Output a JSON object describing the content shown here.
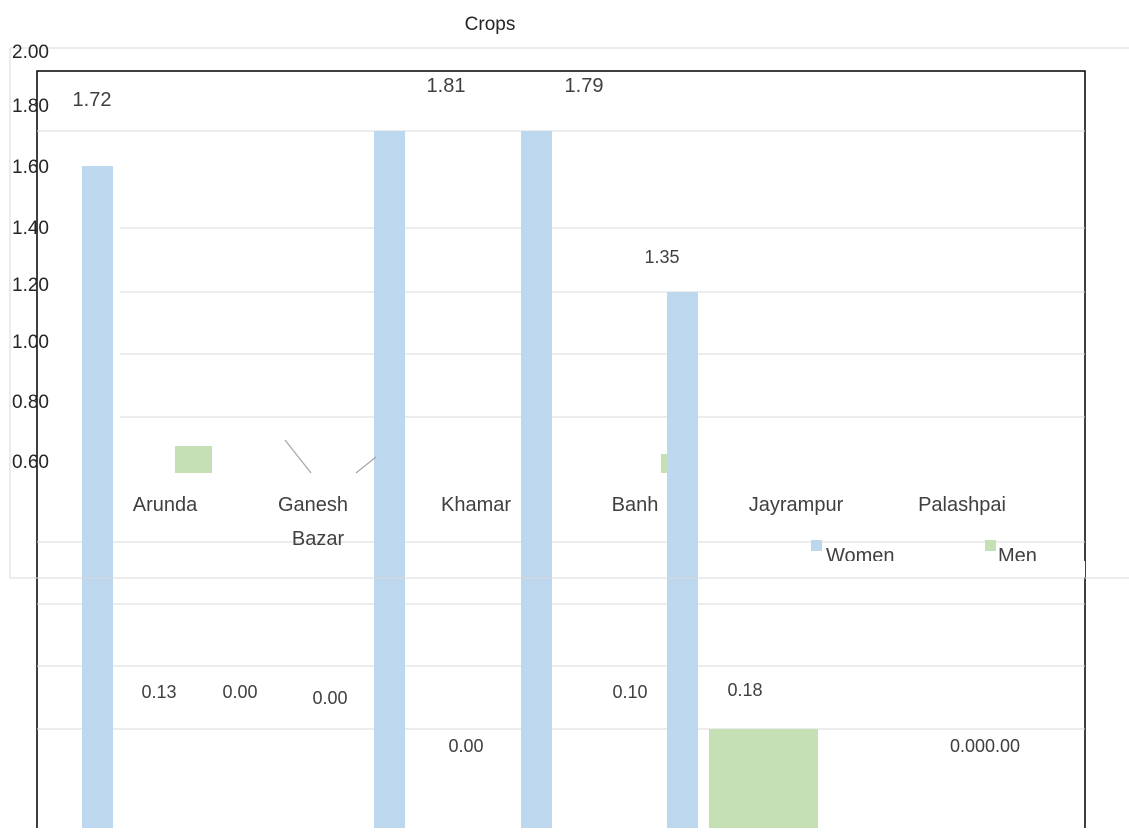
{
  "chart_data": {
    "type": "bar",
    "title": "Crops",
    "categories": [
      "Arunda",
      "Ganesh Bazar",
      "Khamarpara",
      "Banhabari",
      "Jayrampur",
      "Palashpai"
    ],
    "category_labels_visible": [
      "Arunda",
      "Ganesh",
      "Bazar",
      "Khamar",
      "Banh",
      "Jayrampur",
      "Palashpai"
    ],
    "series": [
      {
        "name": "Women",
        "color": "#bdd7ee",
        "values": [
          1.72,
          0.0,
          1.81,
          1.79,
          1.35,
          0.0
        ]
      },
      {
        "name": "Men",
        "color": "#c5e0b4",
        "values": [
          0.13,
          0.0,
          0.0,
          0.1,
          0.18,
          0.0
        ]
      }
    ],
    "y_tick_labels": [
      "2.00",
      "1.80",
      "1.60",
      "1.40",
      "1.20",
      "1.00",
      "0.80",
      "0.60"
    ],
    "data_labels": [
      "1.72",
      "1.81",
      "1.79",
      "1.35",
      "0.13",
      "0.00",
      "0.00",
      "0.00",
      "0.10",
      "0.18",
      "0.000.00"
    ],
    "legend": [
      {
        "label": "Women",
        "color": "#bdd7ee"
      },
      {
        "label": "Men",
        "color": "#c5e0b4"
      }
    ],
    "ylim": [
      0,
      2
    ],
    "grid": true,
    "legend_position": "bottom-right"
  }
}
